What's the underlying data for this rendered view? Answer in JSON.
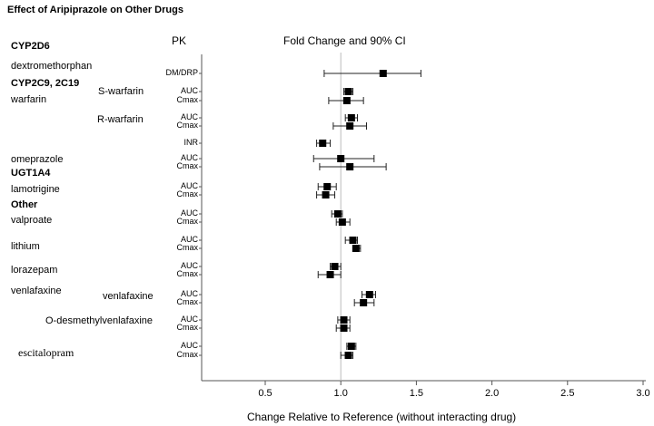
{
  "chart_data": {
    "type": "forest",
    "title": "Effect of Aripiprazole on Other Drugs",
    "column_header": "PK",
    "plot_title": "Fold Change and 90% CI",
    "xlabel": "Change Relative to Reference (without interacting drug)",
    "xlim": [
      0.5,
      3.0
    ],
    "xticks": [
      "0.5",
      "1.0",
      "1.5",
      "2.0",
      "2.5",
      "3.0"
    ],
    "reference_line": 1.0,
    "left_labels": [
      {
        "text": "CYP2D6",
        "kind": "category"
      },
      {
        "text": "dextromethorphan",
        "kind": "drug"
      },
      {
        "text": "CYP2C9, 2C19",
        "kind": "category"
      },
      {
        "text": "warfarin",
        "kind": "drug"
      },
      {
        "text": "omeprazole",
        "kind": "drug"
      },
      {
        "text": "UGT1A4",
        "kind": "category"
      },
      {
        "text": "lamotrigine",
        "kind": "drug"
      },
      {
        "text": "Other",
        "kind": "category"
      },
      {
        "text": "valproate",
        "kind": "drug"
      },
      {
        "text": "lithium",
        "kind": "drug"
      },
      {
        "text": "lorazepam",
        "kind": "drug"
      },
      {
        "text": "venlafaxine",
        "kind": "drug"
      },
      {
        "text": "escitalopram",
        "kind": "drug-serif"
      }
    ],
    "sub_labels": [
      "S-warfarin",
      "R-warfarin",
      "venlafaxine",
      "O-desmethylvenlafaxine"
    ],
    "rows": [
      {
        "param": "DM/DRP",
        "value": 1.28,
        "lo": 0.89,
        "hi": 1.53
      },
      {
        "param": "AUC",
        "value": 1.05,
        "lo": 1.02,
        "hi": 1.08
      },
      {
        "param": "Cmax",
        "value": 1.04,
        "lo": 0.92,
        "hi": 1.15
      },
      {
        "param": "AUC",
        "value": 1.07,
        "lo": 1.03,
        "hi": 1.11
      },
      {
        "param": "Cmax",
        "value": 1.06,
        "lo": 0.95,
        "hi": 1.17
      },
      {
        "param": "INR",
        "value": 0.88,
        "lo": 0.84,
        "hi": 0.93
      },
      {
        "param": "AUC",
        "value": 1.0,
        "lo": 0.82,
        "hi": 1.22
      },
      {
        "param": "Cmax",
        "value": 1.06,
        "lo": 0.86,
        "hi": 1.3
      },
      {
        "param": "AUC",
        "value": 0.91,
        "lo": 0.85,
        "hi": 0.97
      },
      {
        "param": "Cmax",
        "value": 0.9,
        "lo": 0.84,
        "hi": 0.96
      },
      {
        "param": "AUC",
        "value": 0.98,
        "lo": 0.94,
        "hi": 1.01
      },
      {
        "param": "Cmax",
        "value": 1.01,
        "lo": 0.97,
        "hi": 1.06
      },
      {
        "param": "AUC",
        "value": 1.08,
        "lo": 1.03,
        "hi": 1.11
      },
      {
        "param": "Cmax",
        "value": 1.1,
        "lo": 1.08,
        "hi": 1.13
      },
      {
        "param": "AUC",
        "value": 0.96,
        "lo": 0.93,
        "hi": 1.0
      },
      {
        "param": "Cmax",
        "value": 0.93,
        "lo": 0.85,
        "hi": 1.0
      },
      {
        "param": "AUC",
        "value": 1.19,
        "lo": 1.14,
        "hi": 1.23
      },
      {
        "param": "Cmax",
        "value": 1.15,
        "lo": 1.09,
        "hi": 1.22
      },
      {
        "param": "AUC",
        "value": 1.02,
        "lo": 0.98,
        "hi": 1.06
      },
      {
        "param": "Cmax",
        "value": 1.02,
        "lo": 0.97,
        "hi": 1.06
      },
      {
        "param": "AUC",
        "value": 1.07,
        "lo": 1.04,
        "hi": 1.1
      },
      {
        "param": "Cmax",
        "value": 1.05,
        "lo": 1.0,
        "hi": 1.08
      }
    ]
  }
}
